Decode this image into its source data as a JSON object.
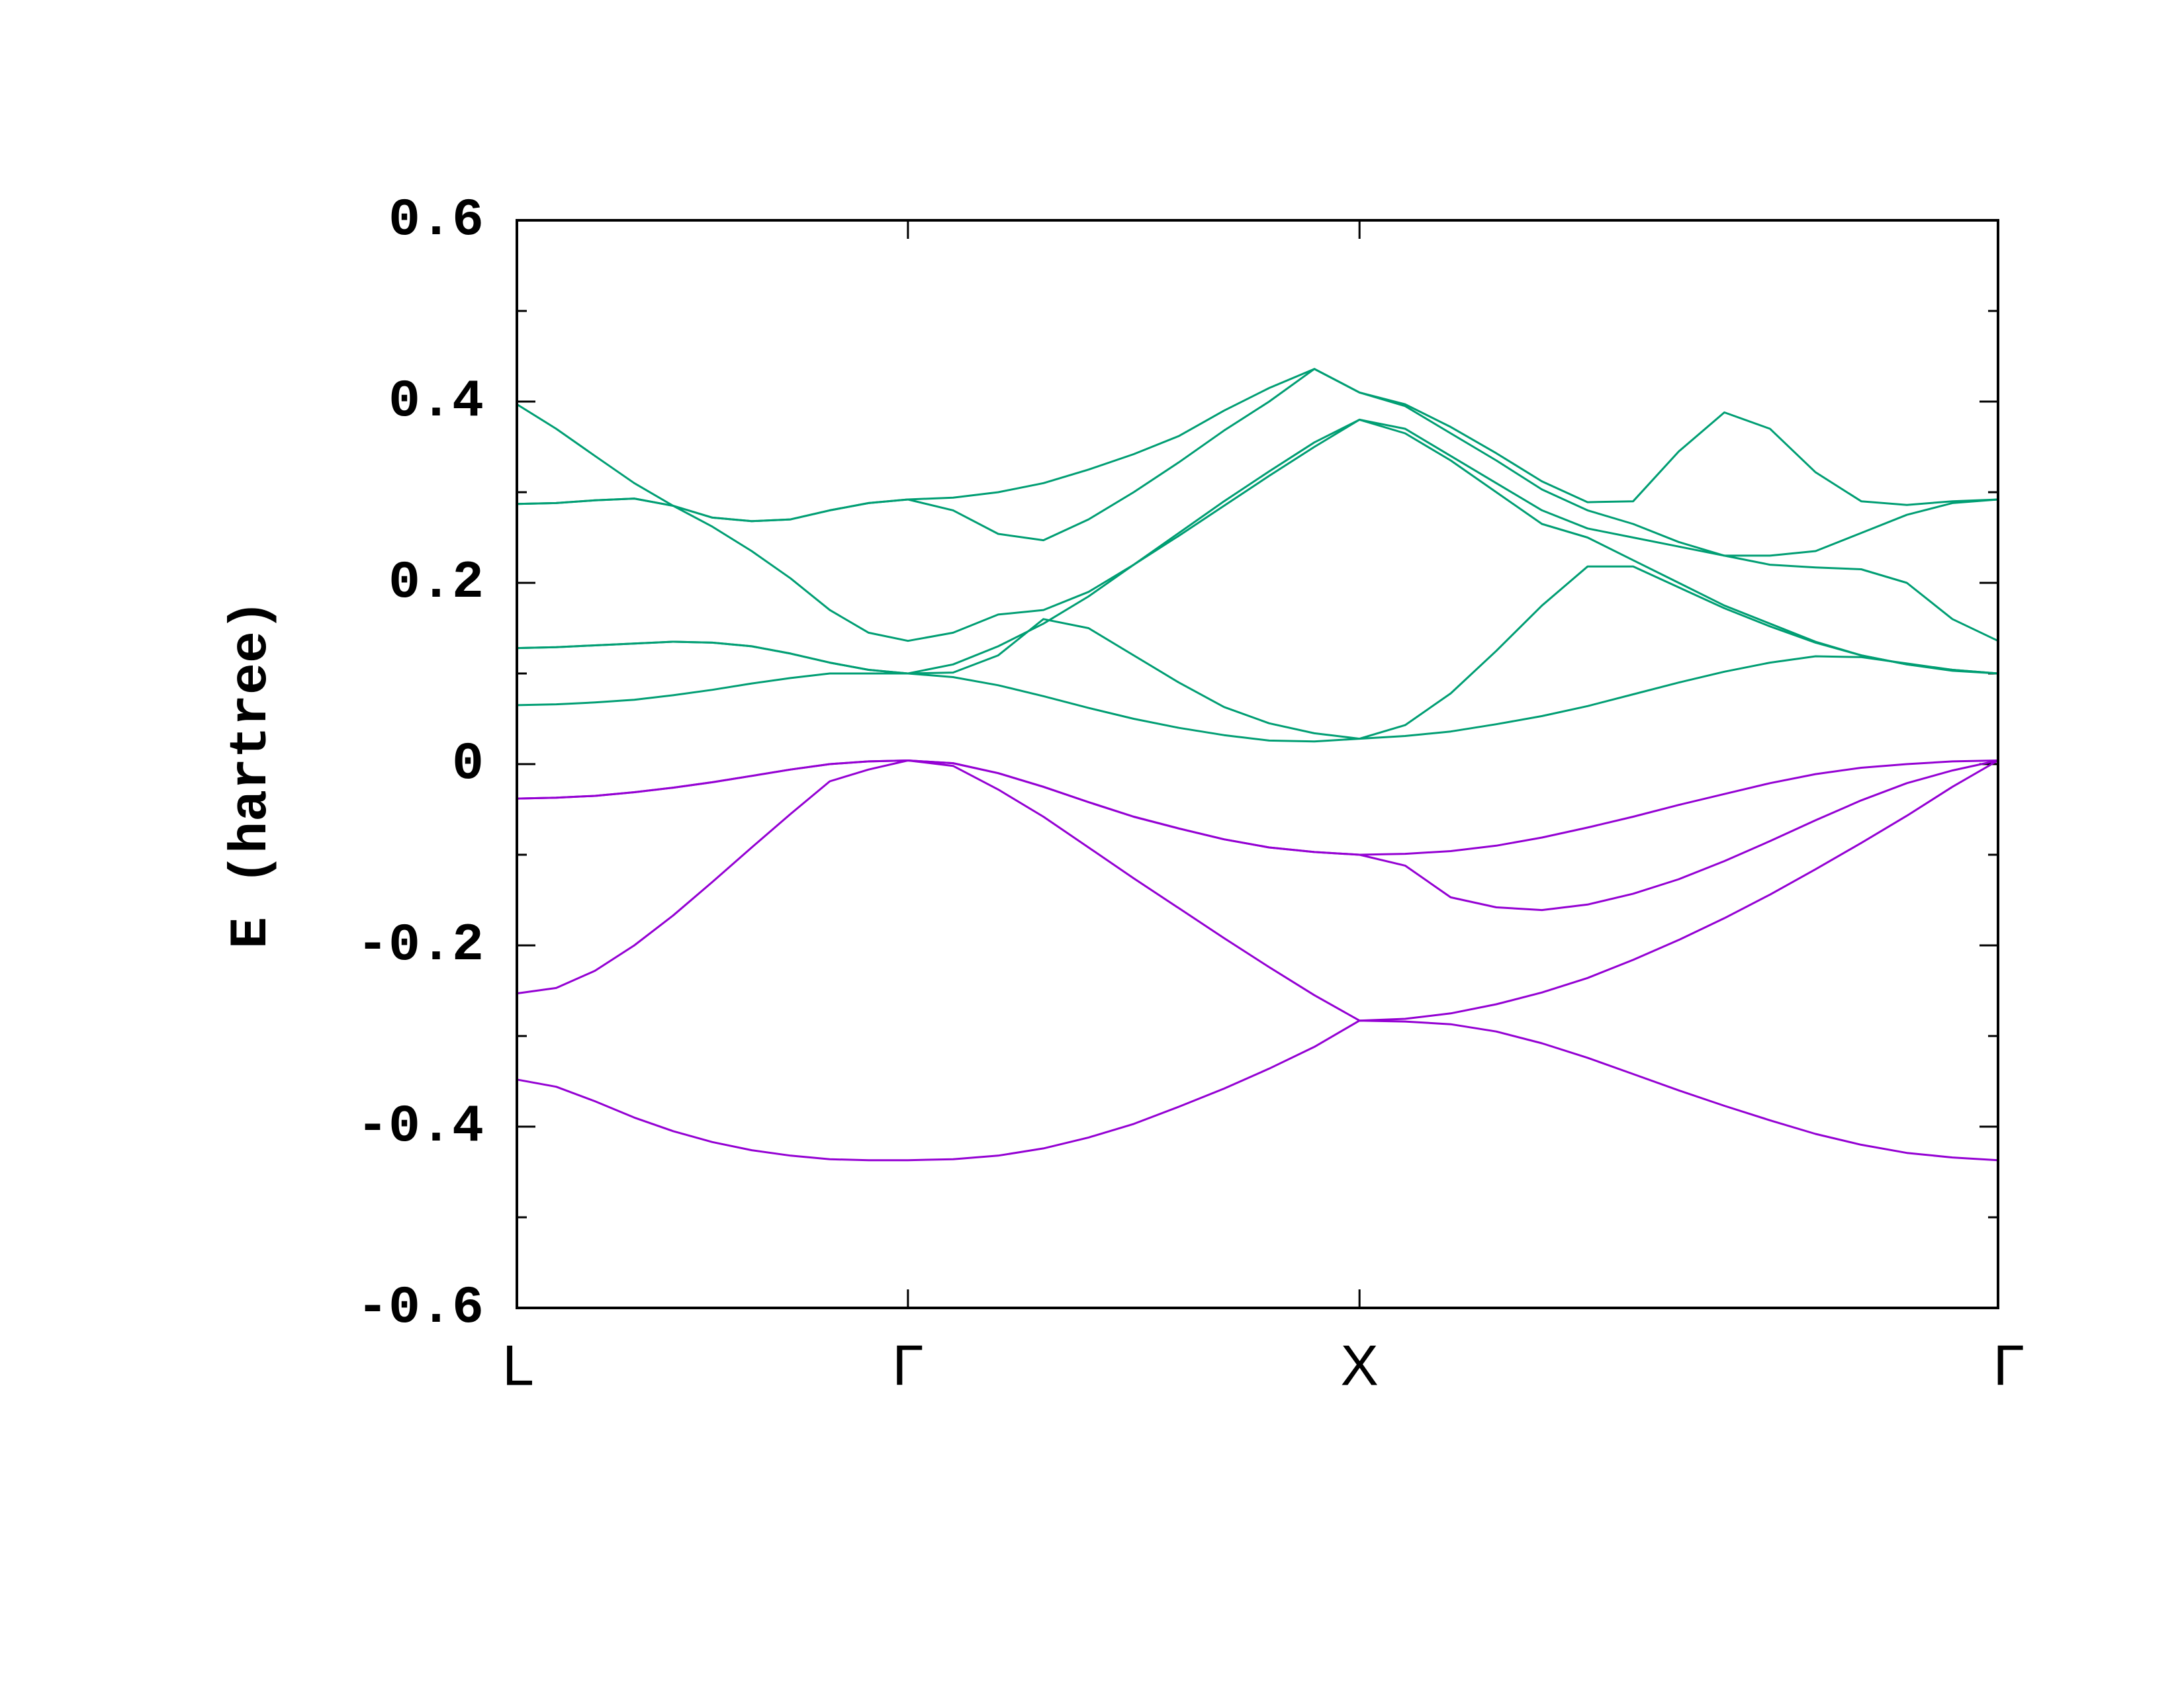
{
  "chart_data": {
    "type": "line",
    "y_label": "E (hartree)",
    "x": [
      0,
      0.087,
      0.173,
      0.26,
      0.346,
      0.433,
      0.52,
      0.606,
      0.693,
      0.779,
      0.866,
      0.966,
      1.066,
      1.166,
      1.266,
      1.366,
      1.466,
      1.566,
      1.666,
      1.766,
      1.866,
      1.967,
      2.068,
      2.169,
      2.27,
      2.371,
      2.472,
      2.573,
      2.674,
      2.775,
      2.876,
      2.977,
      3.078,
      3.179,
      3.28
    ],
    "xlim": [
      0,
      3.28
    ],
    "xticks": [
      {
        "value": 0,
        "label": "L"
      },
      {
        "value": 0.866,
        "label": "Γ"
      },
      {
        "value": 1.866,
        "label": "X"
      },
      {
        "value": 3.28,
        "label": "Γ"
      }
    ],
    "ylim": [
      -0.6,
      0.6
    ],
    "yticks": [
      -0.6,
      -0.4,
      -0.2,
      0,
      0.2,
      0.4,
      0.6
    ],
    "yminorticks": [
      -0.5,
      -0.3,
      -0.1,
      0.1,
      0.3,
      0.5
    ],
    "series": [
      {
        "color": "#9400d3",
        "values": [
          -0.348,
          -0.356,
          -0.372,
          -0.39,
          -0.405,
          -0.417,
          -0.426,
          -0.432,
          -0.436,
          -0.437,
          -0.437,
          -0.436,
          -0.432,
          -0.424,
          -0.412,
          -0.397,
          -0.378,
          -0.358,
          -0.336,
          -0.312,
          -0.283,
          -0.284,
          -0.287,
          -0.295,
          -0.308,
          -0.324,
          -0.342,
          -0.36,
          -0.377,
          -0.393,
          -0.408,
          -0.42,
          -0.429,
          -0.434,
          -0.437
        ]
      },
      {
        "color": "#9400d3",
        "values": [
          -0.253,
          -0.247,
          -0.228,
          -0.2,
          -0.167,
          -0.13,
          -0.092,
          -0.055,
          -0.019,
          -0.006,
          0.004,
          -0.002,
          -0.028,
          -0.058,
          -0.092,
          -0.126,
          -0.159,
          -0.192,
          -0.224,
          -0.255,
          -0.283,
          -0.281,
          -0.275,
          -0.265,
          -0.252,
          -0.236,
          -0.216,
          -0.194,
          -0.17,
          -0.144,
          -0.116,
          -0.087,
          -0.057,
          -0.025,
          0.004
        ]
      },
      {
        "color": "#9400d3",
        "values": [
          -0.038,
          -0.037,
          -0.035,
          -0.031,
          -0.026,
          -0.02,
          -0.013,
          -0.006,
          0,
          0.003,
          0.004,
          0.001,
          -0.01,
          -0.025,
          -0.042,
          -0.058,
          -0.071,
          -0.083,
          -0.092,
          -0.097,
          -0.1,
          -0.112,
          -0.147,
          -0.158,
          -0.161,
          -0.155,
          -0.143,
          -0.127,
          -0.107,
          -0.085,
          -0.062,
          -0.04,
          -0.021,
          -0.007,
          0.004
        ]
      },
      {
        "color": "#9400d3",
        "values": [
          -0.038,
          -0.037,
          -0.035,
          -0.031,
          -0.026,
          -0.02,
          -0.013,
          -0.006,
          0,
          0.003,
          0.004,
          0.001,
          -0.01,
          -0.025,
          -0.042,
          -0.058,
          -0.071,
          -0.083,
          -0.092,
          -0.097,
          -0.1,
          -0.099,
          -0.096,
          -0.09,
          -0.081,
          -0.07,
          -0.058,
          -0.045,
          -0.033,
          -0.021,
          -0.011,
          -0.004,
          0,
          0.003,
          0.004
        ]
      },
      {
        "color": "#009e73",
        "values": [
          0.065,
          0.066,
          0.068,
          0.071,
          0.076,
          0.082,
          0.089,
          0.095,
          0.1,
          0.1,
          0.1,
          0.096,
          0.087,
          0.075,
          0.062,
          0.05,
          0.04,
          0.032,
          0.026,
          0.025,
          0.028,
          0.031,
          0.036,
          0.044,
          0.053,
          0.064,
          0.077,
          0.09,
          0.102,
          0.112,
          0.119,
          0.118,
          0.111,
          0.104,
          0.1
        ]
      },
      {
        "color": "#009e73",
        "values": [
          0.128,
          0.129,
          0.131,
          0.133,
          0.135,
          0.134,
          0.13,
          0.122,
          0.112,
          0.104,
          0.1,
          0.101,
          0.12,
          0.16,
          0.15,
          0.12,
          0.09,
          0.063,
          0.045,
          0.034,
          0.028,
          0.043,
          0.078,
          0.125,
          0.175,
          0.218,
          0.218,
          0.195,
          0.172,
          0.152,
          0.134,
          0.12,
          0.11,
          0.104,
          0.1
        ]
      },
      {
        "color": "#009e73",
        "values": [
          0.287,
          0.288,
          0.291,
          0.293,
          0.285,
          0.272,
          0.268,
          0.27,
          0.28,
          0.288,
          0.292,
          0.28,
          0.254,
          0.247,
          0.27,
          0.3,
          0.333,
          0.368,
          0.4,
          0.436,
          0.41,
          0.397,
          0.372,
          0.343,
          0.312,
          0.289,
          0.29,
          0.345,
          0.388,
          0.37,
          0.322,
          0.29,
          0.286,
          0.29,
          0.292
        ]
      },
      {
        "color": "#009e73",
        "values": [
          0.397,
          0.37,
          0.34,
          0.31,
          0.285,
          0.262,
          0.235,
          0.205,
          0.17,
          0.145,
          0.136,
          0.145,
          0.165,
          0.17,
          0.19,
          0.22,
          0.252,
          0.285,
          0.318,
          0.35,
          0.38,
          0.37,
          0.34,
          0.31,
          0.28,
          0.26,
          0.25,
          0.24,
          0.23,
          0.23,
          0.235,
          0.255,
          0.275,
          0.288,
          0.292
        ]
      },
      {
        "color": "#009e73",
        "values": [
          0.128,
          0.129,
          0.131,
          0.133,
          0.135,
          0.134,
          0.13,
          0.122,
          0.112,
          0.104,
          0.1,
          0.11,
          0.13,
          0.155,
          0.185,
          0.22,
          0.255,
          0.29,
          0.323,
          0.355,
          0.38,
          0.365,
          0.335,
          0.3,
          0.265,
          0.25,
          0.225,
          0.2,
          0.175,
          0.155,
          0.135,
          0.12,
          0.11,
          0.103,
          0.1
        ]
      },
      {
        "color": "#009e73",
        "values": [
          0.287,
          0.288,
          0.291,
          0.293,
          0.285,
          0.272,
          0.268,
          0.27,
          0.28,
          0.288,
          0.292,
          0.294,
          0.3,
          0.31,
          0.325,
          0.342,
          0.362,
          0.39,
          0.415,
          0.436,
          0.41,
          0.395,
          0.365,
          0.335,
          0.303,
          0.28,
          0.265,
          0.245,
          0.23,
          0.22,
          0.217,
          0.215,
          0.2,
          0.16,
          0.136
        ]
      }
    ]
  }
}
